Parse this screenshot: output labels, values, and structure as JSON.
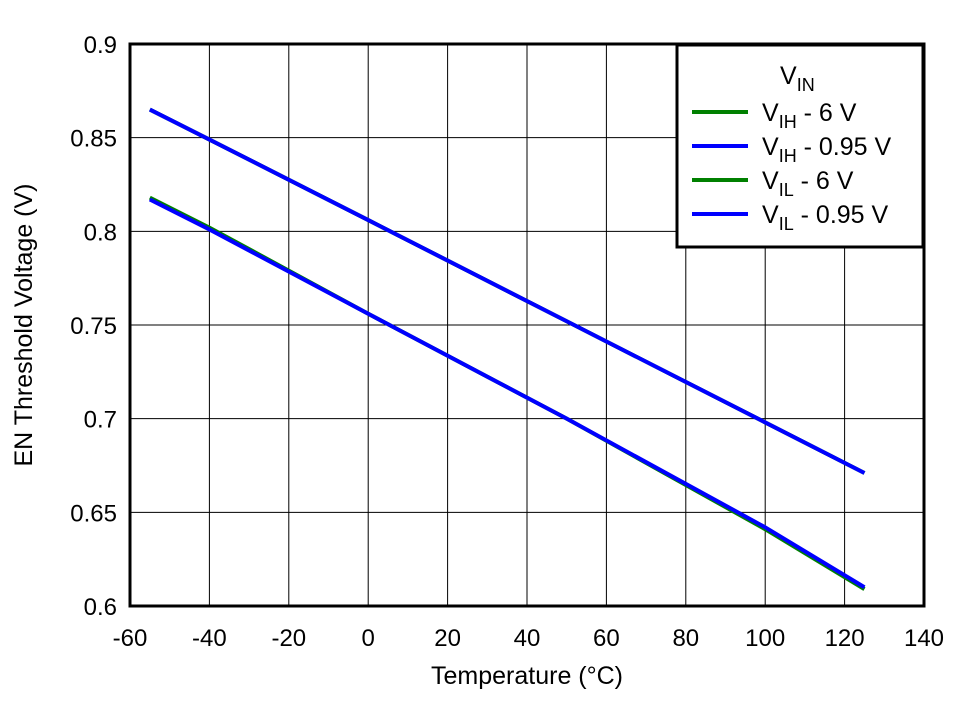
{
  "chart_data": {
    "type": "line",
    "title": "",
    "xlabel": "Temperature (°C)",
    "ylabel": "EN Threshold Voltage (V)",
    "xlim": [
      -60,
      140
    ],
    "ylim": [
      0.6,
      0.9
    ],
    "xticks": [
      "-60",
      "-40",
      "-20",
      "0",
      "20",
      "40",
      "60",
      "80",
      "100",
      "120",
      "140"
    ],
    "yticks": [
      "0.6",
      "0.65",
      "0.7",
      "0.75",
      "0.8",
      "0.85",
      "0.9"
    ],
    "grid": true,
    "legend_placement": "top-right",
    "legend_title": {
      "main": "V",
      "sub": "IN"
    },
    "x": [
      -55,
      -40,
      0,
      50,
      100,
      125
    ],
    "series": [
      {
        "name": "VIH - 6 V",
        "label_main": "V",
        "label_sub": "IH",
        "label_rest": " - 6 V",
        "color": "#008000",
        "values": [
          0.865,
          0.849,
          0.806,
          0.752,
          0.698,
          0.671
        ]
      },
      {
        "name": "VIH - 0.95 V",
        "label_main": "V",
        "label_sub": "IH",
        "label_rest": " - 0.95 V",
        "color": "#0000FF",
        "values": [
          0.865,
          0.849,
          0.806,
          0.752,
          0.698,
          0.671
        ]
      },
      {
        "name": "VIL - 6 V",
        "label_main": "V",
        "label_sub": "IL",
        "label_rest": " - 6 V",
        "color": "#008000",
        "values": [
          0.818,
          0.802,
          0.756,
          0.7,
          0.641,
          0.609
        ]
      },
      {
        "name": "VIL - 0.95 V",
        "label_main": "V",
        "label_sub": "IL",
        "label_rest": " - 0.95 V",
        "color": "#0000FF",
        "values": [
          0.817,
          0.801,
          0.756,
          0.7,
          0.642,
          0.61
        ]
      }
    ]
  }
}
